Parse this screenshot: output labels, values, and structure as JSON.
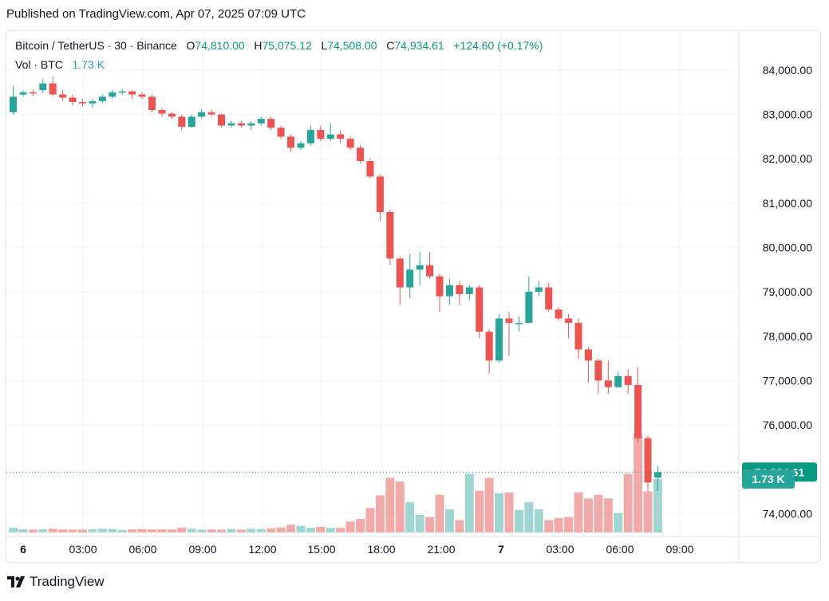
{
  "header": {
    "published": "Published on TradingView.com, Apr 07, 2025 07:09 UTC"
  },
  "legend": {
    "symbol": "Bitcoin / TetherUS · 30 · Binance",
    "o_label": "O",
    "o_value": "74,810.00",
    "h_label": "H",
    "h_value": "75,075.12",
    "l_label": "L",
    "l_value": "74,508.00",
    "c_label": "C",
    "c_value": "74,934.61",
    "change": "+124.60 (+0.17%)",
    "vol_label": "Vol · BTC",
    "vol_value": "1.73 K"
  },
  "footer": {
    "brand": "TradingView"
  },
  "colors": {
    "up": "#26a69a",
    "down": "#ef5350",
    "up_vol": "#9fd6d1",
    "down_vol": "#f2aaa8",
    "last_price": "#089981"
  },
  "chart_data": {
    "type": "candlestick",
    "interval": "30 minutes",
    "x_ticks": [
      "6",
      "03:00",
      "06:00",
      "09:00",
      "12:00",
      "15:00",
      "18:00",
      "21:00",
      "7",
      "03:00",
      "06:00",
      "09:00"
    ],
    "y_ticks": [
      "84,000.00",
      "83,000.00",
      "82,000.00",
      "81,000.00",
      "80,000.00",
      "79,000.00",
      "78,000.00",
      "77,000.00",
      "76,000.00",
      "74,000.00"
    ],
    "ylim": [
      73800,
      84500
    ],
    "last_price_label": "74,934.61",
    "last_volume_label": "1.73 K",
    "grid": true,
    "candles": [
      [
        83050,
        83400,
        83650,
        83000
      ],
      [
        83450,
        83500,
        83550,
        83400
      ],
      [
        83500,
        83480,
        83560,
        83420
      ],
      [
        83550,
        83700,
        83800,
        83480
      ],
      [
        83700,
        83450,
        83850,
        83400
      ],
      [
        83450,
        83380,
        83550,
        83300
      ],
      [
        83380,
        83280,
        83450,
        83200
      ],
      [
        83280,
        83250,
        83350,
        83180
      ],
      [
        83250,
        83300,
        83350,
        83150
      ],
      [
        83300,
        83400,
        83450,
        83250
      ],
      [
        83400,
        83500,
        83550,
        83350
      ],
      [
        83500,
        83520,
        83580,
        83450
      ],
      [
        83520,
        83450,
        83550,
        83350
      ],
      [
        83450,
        83400,
        83500,
        83350
      ],
      [
        83400,
        83100,
        83450,
        83050
      ],
      [
        83100,
        83020,
        83150,
        82950
      ],
      [
        83020,
        82950,
        83050,
        82900
      ],
      [
        82950,
        82720,
        83000,
        82650
      ],
      [
        82720,
        82950,
        83000,
        82700
      ],
      [
        82950,
        83050,
        83120,
        82900
      ],
      [
        83050,
        83000,
        83100,
        82950
      ],
      [
        83000,
        82750,
        83020,
        82700
      ],
      [
        82750,
        82800,
        82850,
        82700
      ],
      [
        82800,
        82750,
        82850,
        82700
      ],
      [
        82750,
        82800,
        82850,
        82650
      ],
      [
        82800,
        82900,
        82950,
        82750
      ],
      [
        82900,
        82700,
        82950,
        82650
      ],
      [
        82700,
        82500,
        82750,
        82450
      ],
      [
        82500,
        82250,
        82550,
        82150
      ],
      [
        82250,
        82350,
        82400,
        82200
      ],
      [
        82350,
        82650,
        82750,
        82300
      ],
      [
        82650,
        82450,
        82750,
        82400
      ],
      [
        82450,
        82550,
        82800,
        82400
      ],
      [
        82550,
        82450,
        82650,
        82350
      ],
      [
        82450,
        82250,
        82500,
        82200
      ],
      [
        82250,
        81950,
        82300,
        81900
      ],
      [
        81950,
        81600,
        82000,
        81550
      ],
      [
        81600,
        80800,
        81650,
        80600
      ],
      [
        80800,
        79750,
        80850,
        79600
      ],
      [
        79750,
        79100,
        79800,
        78700
      ],
      [
        79100,
        79500,
        79850,
        78850
      ],
      [
        79500,
        79600,
        79900,
        79150
      ],
      [
        79600,
        79350,
        79900,
        79300
      ],
      [
        79350,
        78900,
        79400,
        78550
      ],
      [
        78900,
        79150,
        79300,
        78700
      ],
      [
        79150,
        78950,
        79250,
        78700
      ],
      [
        78950,
        79100,
        79150,
        78800
      ],
      [
        79100,
        78100,
        79150,
        77950
      ],
      [
        78100,
        77450,
        78150,
        77150
      ],
      [
        77450,
        78400,
        78500,
        77400
      ],
      [
        78400,
        78300,
        78550,
        77550
      ],
      [
        78300,
        78300,
        78450,
        78100
      ],
      [
        78300,
        79000,
        79350,
        78300
      ],
      [
        79000,
        79100,
        79250,
        78900
      ],
      [
        79100,
        78600,
        79200,
        78550
      ],
      [
        78600,
        78400,
        78650,
        78350
      ],
      [
        78400,
        78300,
        78500,
        77950
      ],
      [
        78300,
        77700,
        78400,
        77500
      ],
      [
        77700,
        77450,
        77750,
        76950
      ],
      [
        77450,
        77000,
        77500,
        76700
      ],
      [
        77000,
        76850,
        77450,
        76700
      ],
      [
        76850,
        77100,
        77200,
        76850
      ],
      [
        77100,
        76900,
        77250,
        76700
      ],
      [
        76900,
        75700,
        77300,
        75600
      ],
      [
        75700,
        74700,
        75750,
        74500
      ],
      [
        74810,
        74934.61,
        75075.12,
        74508
      ]
    ],
    "volumes": [
      0.15,
      0.1,
      0.09,
      0.1,
      0.12,
      0.1,
      0.09,
      0.09,
      0.1,
      0.12,
      0.11,
      0.08,
      0.1,
      0.11,
      0.1,
      0.1,
      0.1,
      0.16,
      0.12,
      0.09,
      0.1,
      0.09,
      0.11,
      0.09,
      0.12,
      0.11,
      0.13,
      0.16,
      0.25,
      0.22,
      0.15,
      0.18,
      0.15,
      0.15,
      0.35,
      0.44,
      0.79,
      1.2,
      1.77,
      1.65,
      0.98,
      0.57,
      0.5,
      1.22,
      0.75,
      0.4,
      1.9,
      1.35,
      1.77,
      1.27,
      1.3,
      0.73,
      0.98,
      0.75,
      0.4,
      0.47,
      0.5,
      1.3,
      1.1,
      1.22,
      1.1,
      0.63,
      1.9,
      3.2,
      1.33,
      1.73
    ]
  }
}
